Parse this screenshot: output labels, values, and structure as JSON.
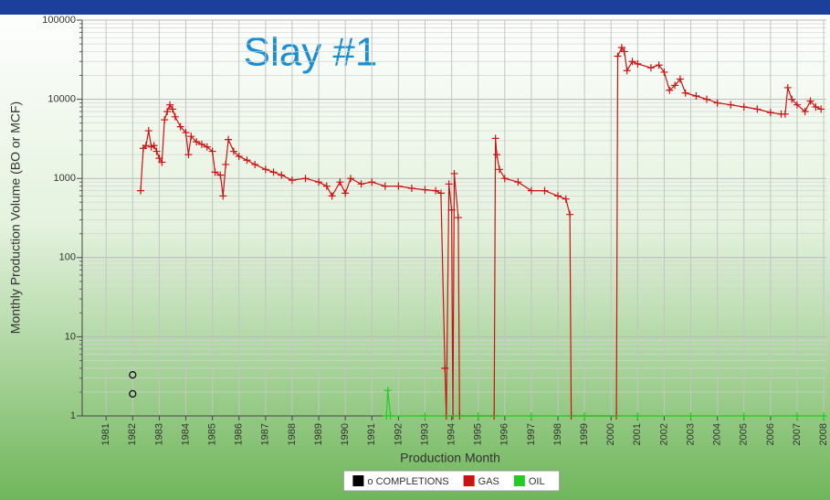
{
  "chart_data": {
    "type": "line",
    "title": "Slay #1",
    "xlabel": "Production Month",
    "ylabel": "Monthly Production Volume (BO or MCF)",
    "log_y": true,
    "grid": true,
    "legend": "bottom",
    "xlim": [
      1980.1,
      2008.1
    ],
    "xticks": [
      1981,
      1982,
      1983,
      1984,
      1985,
      1986,
      1987,
      1988,
      1989,
      1990,
      1991,
      1992,
      1993,
      1994,
      1995,
      1996,
      1997,
      1998,
      1999,
      2000,
      2001,
      2002,
      2003,
      2004,
      2005,
      2006,
      2007,
      2008
    ],
    "ylim": [
      1,
      100000
    ],
    "yticks": [
      1,
      10,
      100,
      1000,
      10000,
      100000
    ],
    "series": [
      {
        "name": "o COMPLETIONS",
        "color": "#000000",
        "marker": "circle",
        "line": false,
        "x": [
          1982.0,
          1982.0
        ],
        "values": [
          3.3,
          1.9
        ]
      },
      {
        "name": "GAS",
        "color": "#cc1111",
        "marker": "plus",
        "line": true,
        "x": [
          1982.3,
          1982.4,
          1982.5,
          1982.6,
          1982.7,
          1982.8,
          1982.9,
          1983.0,
          1983.1,
          1983.2,
          1983.3,
          1983.4,
          1983.5,
          1983.6,
          1983.8,
          1984.0,
          1984.1,
          1984.2,
          1984.4,
          1984.6,
          1984.8,
          1985.0,
          1985.1,
          1985.3,
          1985.4,
          1985.5,
          1985.6,
          1985.8,
          1986.0,
          1986.3,
          1986.6,
          1987.0,
          1987.3,
          1987.6,
          1988.0,
          1988.5,
          1989.0,
          1989.3,
          1989.5,
          1989.8,
          1990.0,
          1990.2,
          1990.6,
          1991.0,
          1991.5,
          1992.0,
          1992.5,
          1993.0,
          1993.4,
          1993.6,
          1993.75,
          1993.8,
          1993.9,
          1994.0,
          1994.05,
          1994.1,
          1994.25,
          1994.3,
          1995.6,
          1995.65,
          1995.7,
          1995.8,
          1996.0,
          1996.5,
          1997.0,
          1997.5,
          1998.0,
          1998.3,
          1998.45,
          1998.5,
          2000.2,
          2000.25,
          2000.4,
          2000.5,
          2000.6,
          2000.8,
          2001.0,
          2001.5,
          2001.8,
          2002.0,
          2002.2,
          2002.4,
          2002.6,
          2002.8,
          2003.2,
          2003.6,
          2004.0,
          2004.5,
          2005.0,
          2005.5,
          2006.0,
          2006.4,
          2006.55,
          2006.65,
          2006.8,
          2007.0,
          2007.3,
          2007.5,
          2007.7,
          2007.9
        ],
        "values": [
          700,
          2400,
          2600,
          4000,
          2500,
          2600,
          2200,
          1800,
          1600,
          5500,
          7000,
          8500,
          7500,
          6000,
          4500,
          3800,
          2000,
          3400,
          2900,
          2700,
          2500,
          2200,
          1200,
          1100,
          600,
          1500,
          3100,
          2200,
          1900,
          1700,
          1500,
          1300,
          1200,
          1100,
          950,
          1000,
          900,
          800,
          600,
          900,
          650,
          1000,
          850,
          900,
          800,
          800,
          750,
          720,
          700,
          650,
          4,
          1,
          850,
          400,
          1,
          1150,
          320,
          1,
          1,
          3200,
          2000,
          1300,
          1000,
          900,
          700,
          700,
          600,
          550,
          350,
          1,
          1,
          35000,
          45000,
          40000,
          23000,
          30000,
          28000,
          25000,
          27000,
          22000,
          13000,
          15000,
          18000,
          12000,
          11000,
          10000,
          9000,
          8500,
          8000,
          7500,
          6800,
          6500,
          6500,
          14000,
          10000,
          8500,
          7000,
          9500,
          8000,
          7500
        ]
      },
      {
        "name": "OIL",
        "color": "#22cc22",
        "marker": "plus",
        "line": true,
        "x": [
          1991.55,
          1991.6,
          1991.7,
          1993,
          1995,
          1997,
          1999,
          2001,
          2003,
          2005,
          2007,
          2008
        ],
        "values": [
          1,
          2.1,
          1,
          1,
          1,
          1,
          1,
          1,
          1,
          1,
          1,
          1
        ]
      }
    ]
  }
}
